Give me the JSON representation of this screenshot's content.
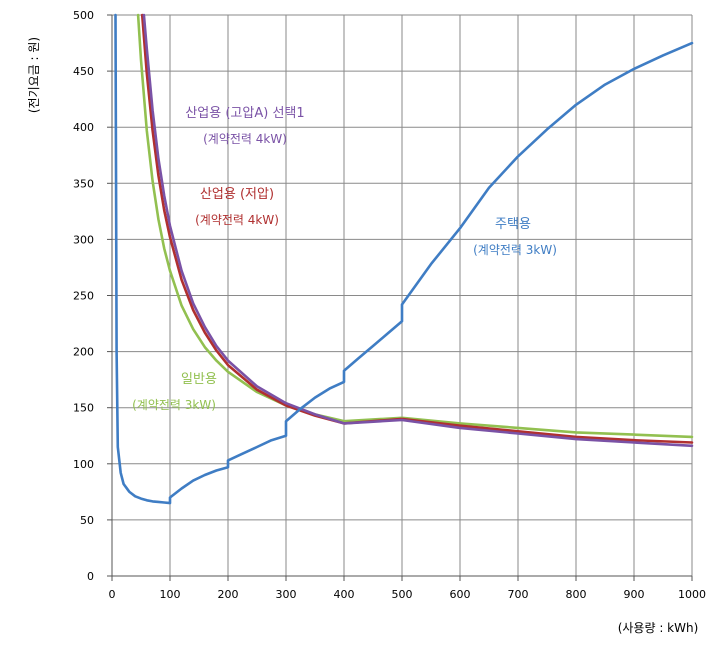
{
  "chart_data": {
    "type": "line",
    "xlabel": "(사용량 : kWh)",
    "ylabel": "(전기요금 : 원)",
    "xlim": [
      0,
      1000
    ],
    "ylim": [
      0,
      500
    ],
    "x_ticks": [
      0,
      100,
      200,
      300,
      400,
      500,
      600,
      700,
      800,
      900,
      1000
    ],
    "y_ticks": [
      0,
      50,
      100,
      150,
      200,
      250,
      300,
      350,
      400,
      450,
      500
    ],
    "grid": true,
    "series": [
      {
        "name": "주택용",
        "note": "(계약전력 3kW)",
        "color": "#3f7dc4",
        "points": [
          [
            6,
            500
          ],
          [
            8,
            200
          ],
          [
            10,
            115
          ],
          [
            15,
            92
          ],
          [
            20,
            82
          ],
          [
            30,
            75
          ],
          [
            40,
            71
          ],
          [
            50,
            69
          ],
          [
            60,
            67.5
          ],
          [
            70,
            66.5
          ],
          [
            80,
            66
          ],
          [
            90,
            65.5
          ],
          [
            100,
            65
          ],
          [
            100,
            70
          ],
          [
            120,
            78
          ],
          [
            140,
            85
          ],
          [
            160,
            90
          ],
          [
            180,
            94
          ],
          [
            200,
            97
          ],
          [
            200,
            103
          ],
          [
            225,
            109
          ],
          [
            250,
            115
          ],
          [
            275,
            121
          ],
          [
            300,
            125
          ],
          [
            300,
            138
          ],
          [
            325,
            149
          ],
          [
            350,
            159
          ],
          [
            375,
            167
          ],
          [
            400,
            173
          ],
          [
            400,
            183
          ],
          [
            425,
            194
          ],
          [
            450,
            205
          ],
          [
            475,
            216
          ],
          [
            500,
            227
          ],
          [
            500,
            242
          ],
          [
            550,
            278
          ],
          [
            600,
            310
          ],
          [
            650,
            346
          ],
          [
            700,
            374
          ],
          [
            750,
            398
          ],
          [
            800,
            420
          ],
          [
            850,
            438
          ],
          [
            900,
            452
          ],
          [
            950,
            464
          ],
          [
            1000,
            475
          ]
        ]
      },
      {
        "name": "산업용 (고압A) 선택1",
        "note": "(계약전력 4kW)",
        "color": "#7a52a6",
        "points": [
          [
            55,
            500
          ],
          [
            60,
            470
          ],
          [
            70,
            415
          ],
          [
            80,
            372
          ],
          [
            90,
            339
          ],
          [
            100,
            312
          ],
          [
            120,
            272
          ],
          [
            140,
            243
          ],
          [
            160,
            222
          ],
          [
            180,
            205
          ],
          [
            200,
            192
          ],
          [
            250,
            169
          ],
          [
            300,
            154
          ],
          [
            350,
            144
          ],
          [
            400,
            136
          ],
          [
            500,
            139
          ],
          [
            600,
            132
          ],
          [
            700,
            127
          ],
          [
            800,
            122
          ],
          [
            900,
            119
          ],
          [
            1000,
            116
          ]
        ]
      },
      {
        "name": "산업용 (저압)",
        "note": "(계약전력 4kW)",
        "color": "#b03030",
        "points": [
          [
            52,
            500
          ],
          [
            60,
            448
          ],
          [
            70,
            397
          ],
          [
            80,
            357
          ],
          [
            90,
            326
          ],
          [
            100,
            302
          ],
          [
            120,
            264
          ],
          [
            140,
            237
          ],
          [
            160,
            217
          ],
          [
            180,
            201
          ],
          [
            200,
            188
          ],
          [
            250,
            166
          ],
          [
            300,
            152
          ],
          [
            350,
            143
          ],
          [
            400,
            136
          ],
          [
            500,
            140
          ],
          [
            600,
            134
          ],
          [
            700,
            129
          ],
          [
            800,
            124
          ],
          [
            900,
            121
          ],
          [
            1000,
            119
          ]
        ]
      },
      {
        "name": "일반용",
        "note": "(계약전력 3kW)",
        "color": "#92c050",
        "points": [
          [
            45,
            500
          ],
          [
            50,
            460
          ],
          [
            60,
            397
          ],
          [
            70,
            352
          ],
          [
            80,
            318
          ],
          [
            90,
            292
          ],
          [
            100,
            272
          ],
          [
            120,
            241
          ],
          [
            140,
            220
          ],
          [
            160,
            204
          ],
          [
            180,
            192
          ],
          [
            200,
            182
          ],
          [
            250,
            164
          ],
          [
            300,
            152
          ],
          [
            350,
            144
          ],
          [
            400,
            138
          ],
          [
            500,
            141
          ],
          [
            600,
            136
          ],
          [
            700,
            132
          ],
          [
            800,
            128
          ],
          [
            900,
            126
          ],
          [
            1000,
            124
          ]
        ]
      }
    ]
  }
}
